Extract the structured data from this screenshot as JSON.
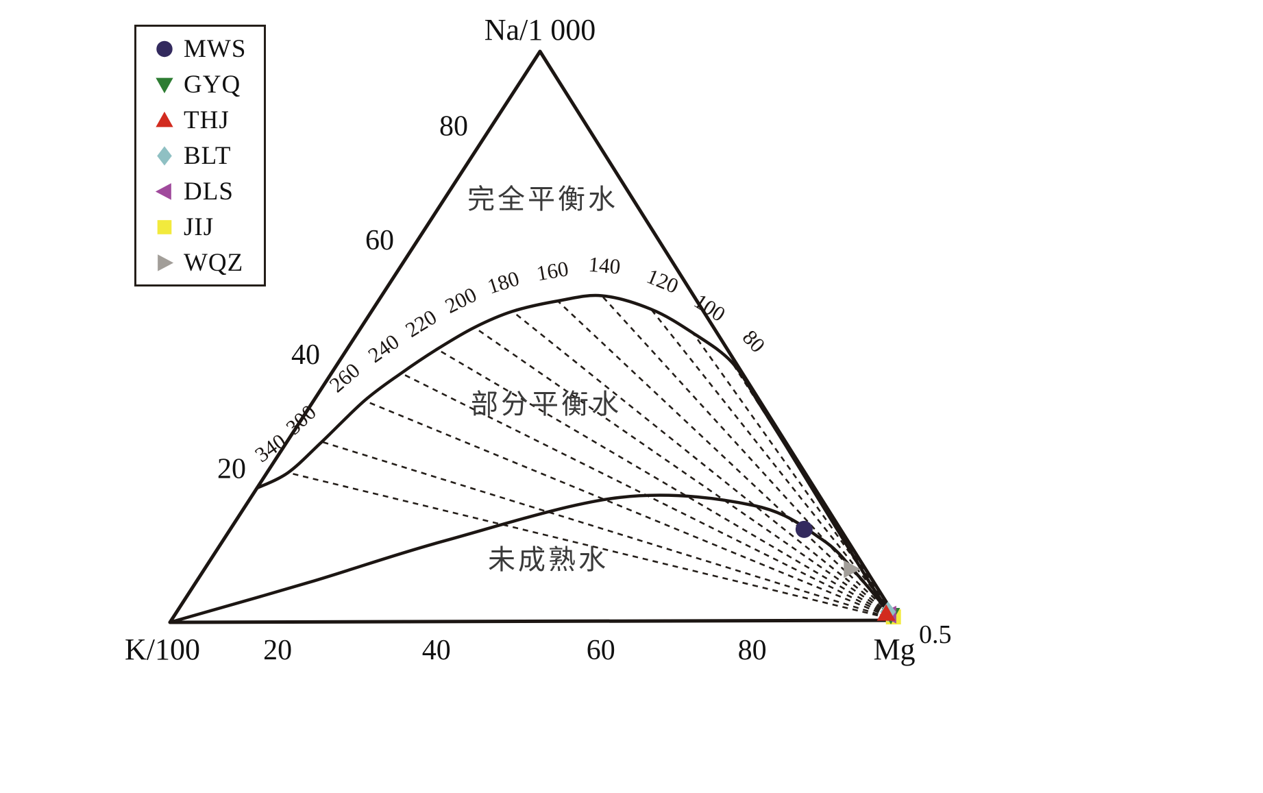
{
  "figure": {
    "apex_top_label": "Na/1 000",
    "apex_bottom_left_label": "K/100",
    "apex_bottom_right_label": "Mg",
    "apex_bottom_right_superscript": "0.5",
    "left_axis_ticks": [
      "20",
      "40",
      "60",
      "80"
    ],
    "bottom_axis_ticks": [
      "20",
      "40",
      "60",
      "80"
    ]
  },
  "chart_data": {
    "type": "scatter",
    "subtype": "ternary-Na-K-Mg-giggenbach",
    "axes": {
      "top": "Na/1 000",
      "bottom_left": "K/100",
      "bottom_right": "Mg^0.5"
    },
    "grid": "isotherm tie lines dashed, radiating from Mg vertex",
    "legend_position": "top-left",
    "regions": [
      {
        "name": "fully-equilibrated",
        "label": "完全平衡水"
      },
      {
        "name": "partially-equilibrated",
        "label": "部分平衡水"
      },
      {
        "name": "immature",
        "label": "未成熟水"
      }
    ],
    "isotherm_curve": [
      {
        "na": 23.5,
        "k": 76.5,
        "mg": 0
      },
      {
        "t": "340",
        "na": 26.2,
        "k": 70.9,
        "mg": 2.9
      },
      {
        "t": "300",
        "na": 31.6,
        "k": 63.6,
        "mg": 4.8
      },
      {
        "t": "260",
        "na": 38.8,
        "k": 54.2,
        "mg": 7.0
      },
      {
        "t": "240",
        "na": 43.6,
        "k": 46.8,
        "mg": 9.6
      },
      {
        "t": "220",
        "na": 47.8,
        "k": 39.8,
        "mg": 12.4
      },
      {
        "t": "200",
        "na": 51.6,
        "k": 32.8,
        "mg": 15.6
      },
      {
        "t": "180",
        "na": 54.4,
        "k": 26.2,
        "mg": 19.4
      },
      {
        "t": "160",
        "na": 56.2,
        "k": 19.1,
        "mg": 24.7
      },
      {
        "t": "140",
        "na": 57.1,
        "k": 12.6,
        "mg": 30.3
      },
      {
        "t": "120",
        "na": 54.7,
        "k": 7.0,
        "mg": 38.3
      },
      {
        "t": "100",
        "na": 50.5,
        "k": 3.3,
        "mg": 46.2
      },
      {
        "t": "80",
        "na": 45.4,
        "k": 0.5,
        "mg": 54.1
      },
      {
        "na": 38.0,
        "k": 0.3,
        "mg": 61.7
      },
      {
        "na": 30.0,
        "k": 0.3,
        "mg": 69.7
      },
      {
        "na": 22.0,
        "k": 0.4,
        "mg": 77.6
      },
      {
        "na": 14.0,
        "k": 0.5,
        "mg": 85.5
      },
      {
        "na": 7.0,
        "k": 0.6,
        "mg": 92.4
      },
      {
        "na": 1.5,
        "k": 0.5,
        "mg": 98.0
      }
    ],
    "immature_boundary": [
      {
        "na": 0,
        "k": 100,
        "mg": 0
      },
      {
        "na": 7.0,
        "k": 77.3,
        "mg": 15.7
      },
      {
        "na": 14.2,
        "k": 55.2,
        "mg": 30.6
      },
      {
        "na": 21.7,
        "k": 27.5,
        "mg": 50.8
      },
      {
        "na": 20.2,
        "k": 9.8,
        "mg": 70.0
      },
      {
        "na": 14.2,
        "k": 3.4,
        "mg": 82.4
      },
      {
        "na": 8.0,
        "k": 1.6,
        "mg": 90.4
      },
      {
        "na": 1.0,
        "k": 0.5,
        "mg": 98.5
      }
    ],
    "series": [
      {
        "name": "MWS",
        "na": 16.0,
        "k": 5.0,
        "mg": 79.0
      },
      {
        "name": "GYQ",
        "na": 0.9,
        "k": 0.5,
        "mg": 98.6
      },
      {
        "name": "THJ",
        "na": 1.2,
        "k": 1.0,
        "mg": 97.8
      },
      {
        "name": "BLT",
        "na": 1.5,
        "k": 0.6,
        "mg": 97.9
      },
      {
        "name": "DLS",
        "na": 1.0,
        "k": 0.7,
        "mg": 98.3
      },
      {
        "name": "JIJ",
        "na": 0.6,
        "k": 0.3,
        "mg": 99.1
      },
      {
        "name": "WQZ",
        "na": 9.0,
        "k": 2.0,
        "mg": 89.0
      }
    ]
  },
  "legend": {
    "items": [
      {
        "label": "MWS",
        "marker": "circle",
        "color": "#332a5e"
      },
      {
        "label": "GYQ",
        "marker": "triangle-down",
        "color": "#2e7d33"
      },
      {
        "label": "THJ",
        "marker": "triangle-up",
        "color": "#d22b1f"
      },
      {
        "label": "BLT",
        "marker": "diamond",
        "color": "#8fc0c3"
      },
      {
        "label": "DLS",
        "marker": "triangle-left",
        "color": "#a04a9c"
      },
      {
        "label": "JIJ",
        "marker": "square",
        "color": "#f2ea3d"
      },
      {
        "label": "WQZ",
        "marker": "triangle-right",
        "color": "#a29e99"
      }
    ]
  }
}
